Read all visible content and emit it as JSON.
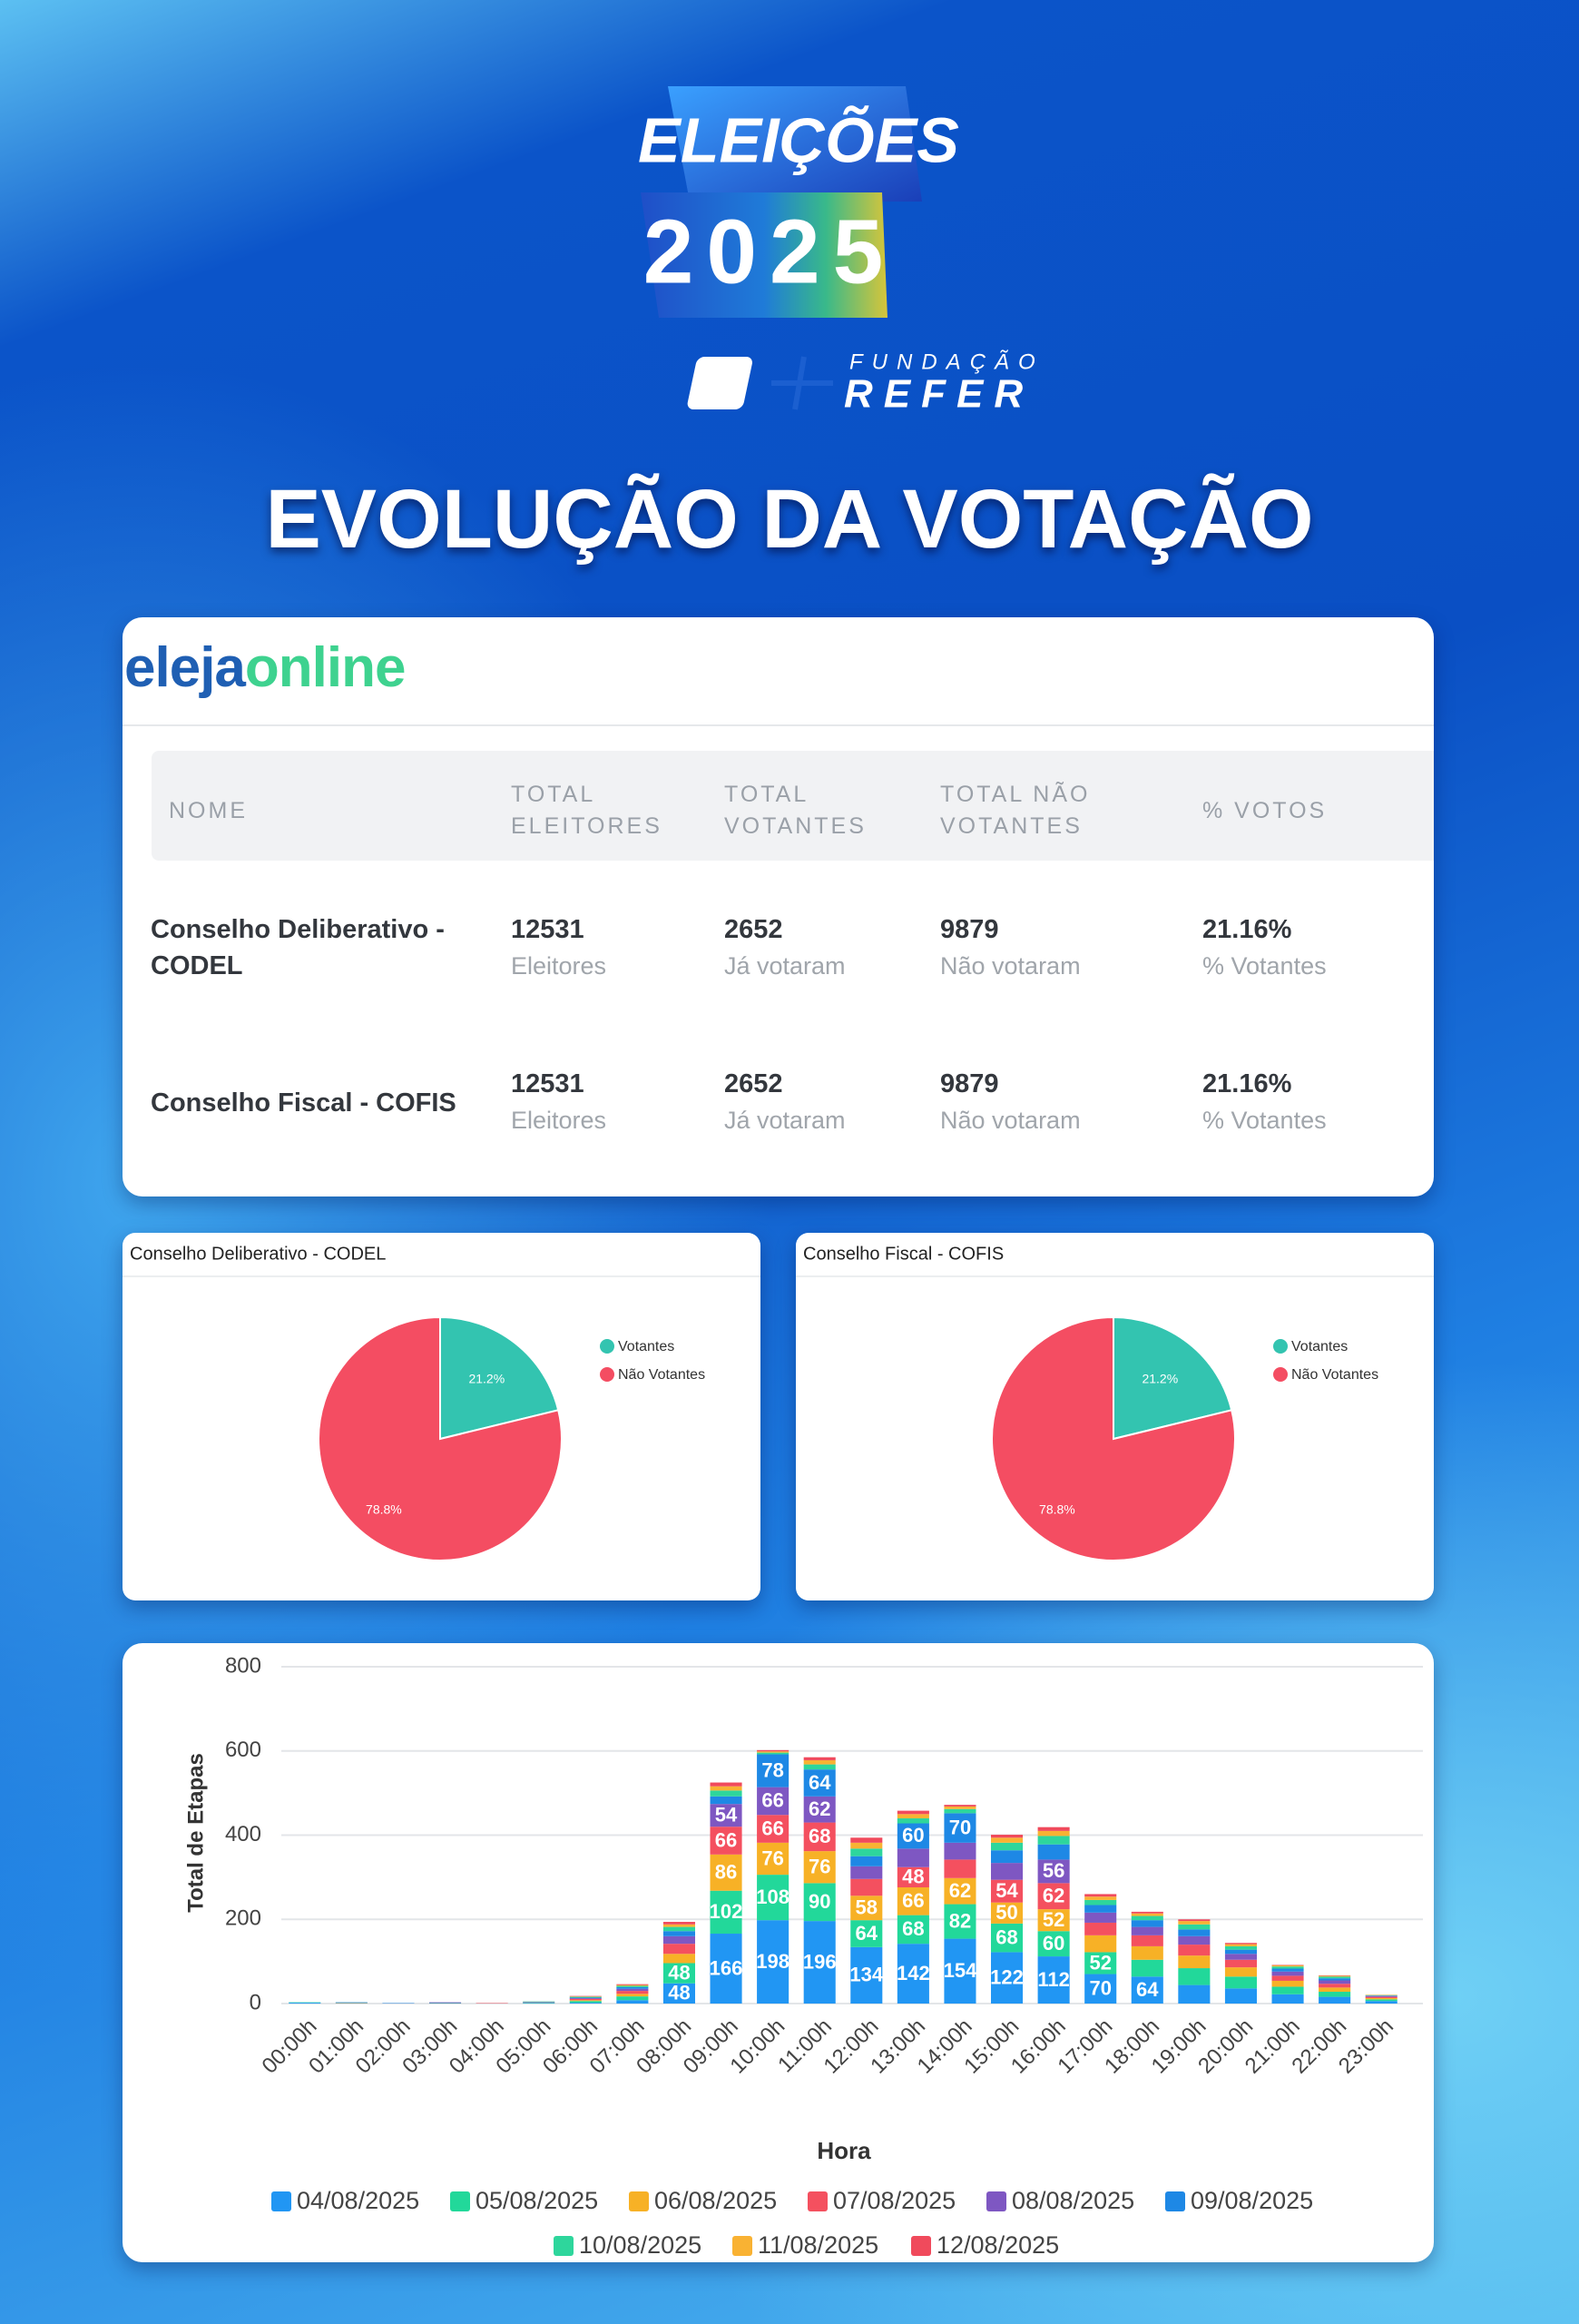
{
  "header": {
    "badge_line1": "ELEIÇÕES",
    "badge_line2": "2025",
    "org_small": "FUNDAÇÃO",
    "org_big": "REFER",
    "title": "EVOLUÇÃO DA VOTAÇÃO"
  },
  "brand": {
    "part1": "eleja",
    "part2": "online"
  },
  "table": {
    "columns": [
      "NOME",
      "TOTAL ELEITORES",
      "TOTAL VOTANTES",
      "TOTAL NÃO VOTANTES",
      "% VOTOS"
    ],
    "rows": [
      {
        "name": "Conselho Deliberativo - CODEL",
        "cells": [
          {
            "value": "12531",
            "sub": "Eleitores"
          },
          {
            "value": "2652",
            "sub": "Já votaram"
          },
          {
            "value": "9879",
            "sub": "Não votaram"
          },
          {
            "value": "21.16%",
            "sub": "% Votantes"
          }
        ]
      },
      {
        "name": "Conselho Fiscal - COFIS",
        "cells": [
          {
            "value": "12531",
            "sub": "Eleitores"
          },
          {
            "value": "2652",
            "sub": "Já votaram"
          },
          {
            "value": "9879",
            "sub": "Não votaram"
          },
          {
            "value": "21.16%",
            "sub": "% Votantes"
          }
        ]
      }
    ]
  },
  "chart_data": [
    {
      "type": "bar",
      "stacked": true,
      "xlabel": "Hora",
      "ylabel": "Total de Etapas",
      "categories": [
        "00:00h",
        "01:00h",
        "02:00h",
        "03:00h",
        "04:00h",
        "05:00h",
        "06:00h",
        "07:00h",
        "08:00h",
        "09:00h",
        "10:00h",
        "11:00h",
        "12:00h",
        "13:00h",
        "14:00h",
        "15:00h",
        "16:00h",
        "17:00h",
        "18:00h",
        "19:00h",
        "20:00h",
        "21:00h",
        "22:00h",
        "23:00h"
      ],
      "series": [
        {
          "name": "04/08/2025",
          "color": "#2196f3",
          "values": [
            2,
            1,
            0,
            0,
            0,
            1,
            2,
            8,
            48,
            166,
            198,
            196,
            134,
            142,
            154,
            122,
            112,
            70,
            64,
            44,
            36,
            22,
            16,
            6
          ]
        },
        {
          "name": "05/08/2025",
          "color": "#22d89a",
          "values": [
            1,
            0,
            0,
            1,
            0,
            1,
            4,
            9,
            48,
            102,
            108,
            90,
            64,
            68,
            82,
            68,
            60,
            52,
            40,
            40,
            28,
            18,
            12,
            4
          ]
        },
        {
          "name": "06/08/2025",
          "color": "#f7b126",
          "values": [
            0,
            1,
            0,
            0,
            0,
            0,
            2,
            6,
            22,
            86,
            76,
            76,
            58,
            66,
            62,
            50,
            52,
            40,
            32,
            30,
            22,
            14,
            10,
            3
          ]
        },
        {
          "name": "07/08/2025",
          "color": "#f4505f",
          "values": [
            0,
            0,
            0,
            0,
            1,
            1,
            3,
            7,
            24,
            66,
            66,
            68,
            40,
            48,
            44,
            54,
            62,
            30,
            26,
            26,
            18,
            12,
            9,
            3
          ]
        },
        {
          "name": "08/08/2025",
          "color": "#7e57c2",
          "values": [
            0,
            0,
            0,
            2,
            0,
            0,
            2,
            5,
            18,
            54,
            66,
            62,
            30,
            44,
            40,
            40,
            56,
            24,
            20,
            20,
            14,
            10,
            8,
            2
          ]
        },
        {
          "name": "09/08/2025",
          "color": "#1e88e5",
          "values": [
            0,
            1,
            1,
            0,
            0,
            1,
            1,
            4,
            12,
            18,
            78,
            64,
            24,
            60,
            70,
            30,
            36,
            18,
            16,
            16,
            10,
            7,
            5,
            1
          ]
        },
        {
          "name": "10/08/2025",
          "color": "#2ed69c",
          "values": [
            0,
            0,
            0,
            0,
            0,
            1,
            2,
            3,
            10,
            14,
            4,
            12,
            18,
            12,
            10,
            18,
            20,
            12,
            10,
            12,
            8,
            5,
            4,
            1
          ]
        },
        {
          "name": "11/08/2025",
          "color": "#f9b233",
          "values": [
            0,
            0,
            0,
            0,
            0,
            0,
            1,
            2,
            6,
            10,
            3,
            10,
            14,
            10,
            6,
            12,
            12,
            8,
            6,
            8,
            5,
            3,
            2,
            1
          ]
        },
        {
          "name": "12/08/2025",
          "color": "#f04a5c",
          "values": [
            0,
            0,
            0,
            0,
            0,
            0,
            1,
            2,
            6,
            9,
            3,
            7,
            12,
            8,
            4,
            7,
            9,
            6,
            4,
            4,
            3,
            1,
            1,
            0
          ]
        }
      ],
      "ylim": [
        0,
        800
      ],
      "yticks": [
        0,
        200,
        400,
        600,
        800
      ],
      "grid": true
    },
    {
      "type": "pie",
      "title": "Conselho Deliberativo - CODEL",
      "categories": [
        "Votantes",
        "Não Votantes"
      ],
      "values": [
        21.2,
        78.8
      ],
      "value_labels": [
        "21.2%",
        "78.8%"
      ],
      "colors": [
        "#33c4b0",
        "#f44d62"
      ]
    },
    {
      "type": "pie",
      "title": "Conselho Fiscal - COFIS",
      "categories": [
        "Votantes",
        "Não Votantes"
      ],
      "values": [
        21.2,
        78.8
      ],
      "value_labels": [
        "21.2%",
        "78.8%"
      ],
      "colors": [
        "#33c4b0",
        "#f44d62"
      ]
    }
  ]
}
